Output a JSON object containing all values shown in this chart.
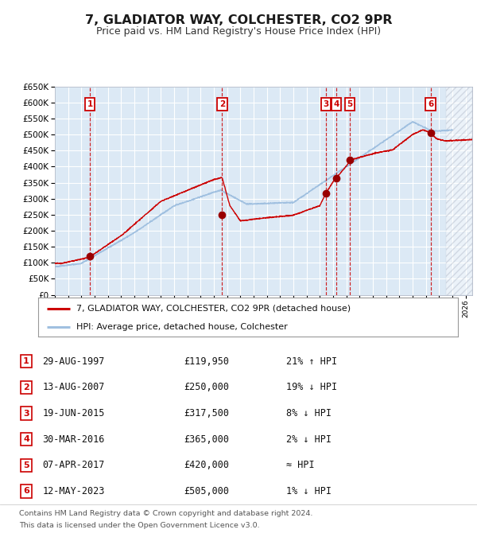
{
  "title": "7, GLADIATOR WAY, COLCHESTER, CO2 9PR",
  "subtitle": "Price paid vs. HM Land Registry's House Price Index (HPI)",
  "plot_bg_color": "#dce9f5",
  "grid_color": "#ffffff",
  "hpi_color": "#a0c0e0",
  "price_color": "#cc0000",
  "dot_color": "#990000",
  "dashed_color": "#cc0000",
  "ylim": [
    0,
    650000
  ],
  "yticks": [
    0,
    50000,
    100000,
    150000,
    200000,
    250000,
    300000,
    350000,
    400000,
    450000,
    500000,
    550000,
    600000,
    650000
  ],
  "legend_label_price": "7, GLADIATOR WAY, COLCHESTER, CO2 9PR (detached house)",
  "legend_label_hpi": "HPI: Average price, detached house, Colchester",
  "transactions": [
    {
      "label": "1",
      "date": "29-AUG-1997",
      "price": 119950,
      "pct": "21%",
      "dir": "↑",
      "vs": "HPI",
      "year": 1997.65
    },
    {
      "label": "2",
      "date": "13-AUG-2007",
      "price": 250000,
      "pct": "19%",
      "dir": "↓",
      "vs": "HPI",
      "year": 2007.62
    },
    {
      "label": "3",
      "date": "19-JUN-2015",
      "price": 317500,
      "pct": "8%",
      "dir": "↓",
      "vs": "HPI",
      "year": 2015.46
    },
    {
      "label": "4",
      "date": "30-MAR-2016",
      "price": 365000,
      "pct": "2%",
      "dir": "↓",
      "vs": "HPI",
      "year": 2016.25
    },
    {
      "label": "5",
      "date": "07-APR-2017",
      "price": 420000,
      "pct": "≈",
      "dir": "",
      "vs": "HPI",
      "year": 2017.27
    },
    {
      "label": "6",
      "date": "12-MAY-2023",
      "price": 505000,
      "pct": "1%",
      "dir": "↓",
      "vs": "HPI",
      "year": 2023.36
    }
  ],
  "footer1": "Contains HM Land Registry data © Crown copyright and database right 2024.",
  "footer2": "This data is licensed under the Open Government Licence v3.0.",
  "hatch_start": 2024.5,
  "xmin": 1995,
  "xmax": 2026.5
}
